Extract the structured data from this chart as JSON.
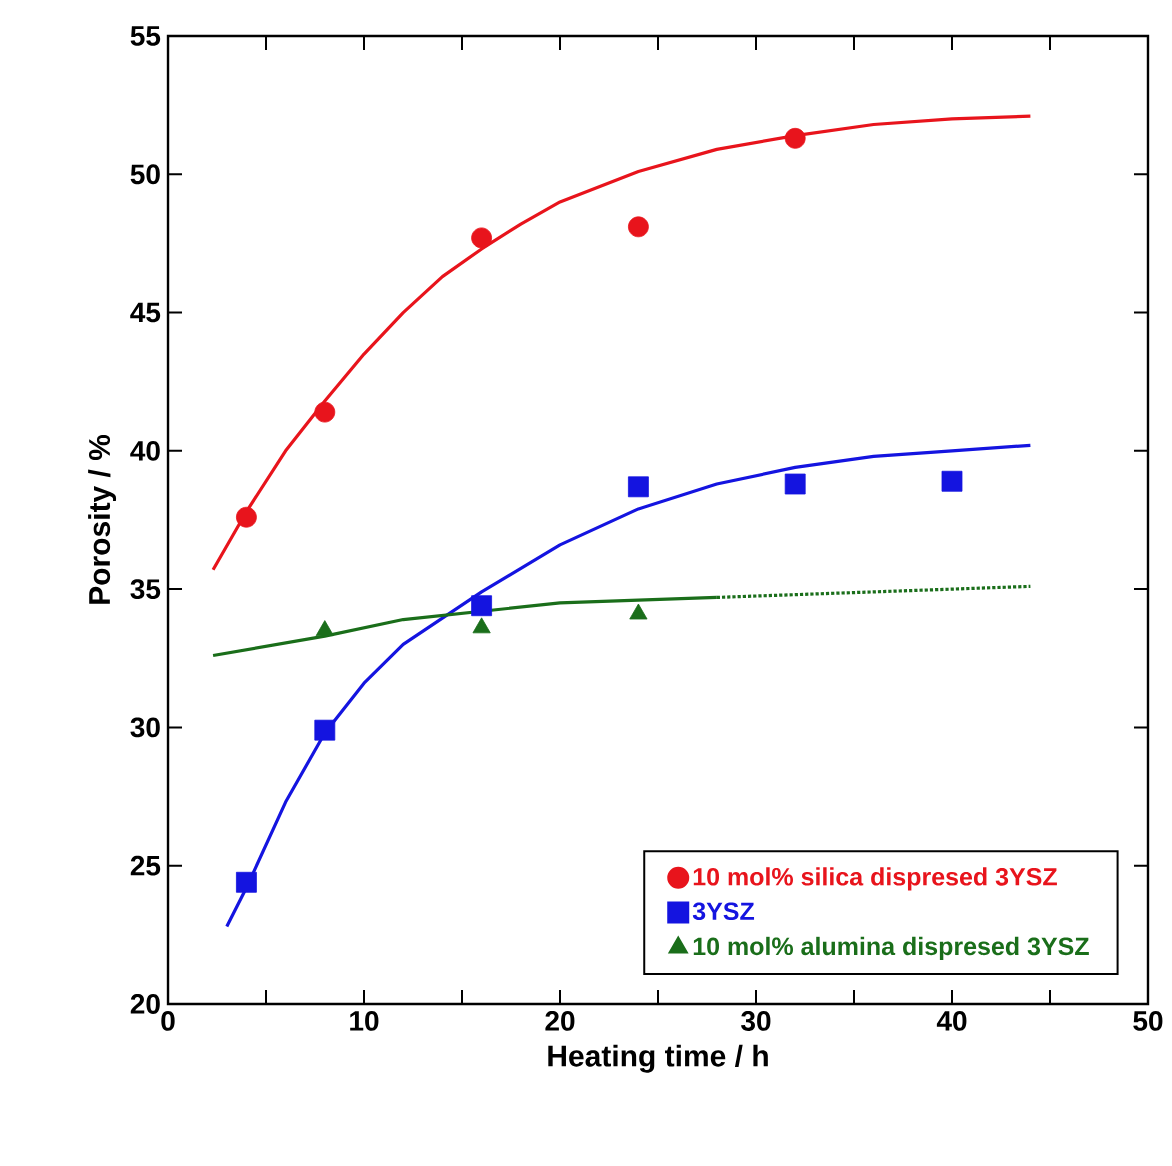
{
  "chart_data": {
    "type": "scatter",
    "xlabel": "Heating time / h",
    "ylabel": "Porosity / %",
    "xlim": [
      0,
      50
    ],
    "ylim": [
      20,
      55
    ],
    "xticks": [
      0,
      10,
      20,
      30,
      40,
      50
    ],
    "yticks": [
      20,
      25,
      30,
      35,
      40,
      45,
      50,
      55
    ],
    "legend": "bottom right",
    "grid": false,
    "series": [
      {
        "name": "10 mol% silica dispresed 3YSZ",
        "color": "#e8141c",
        "marker": "circle",
        "x": [
          4,
          8,
          16,
          24,
          32
        ],
        "values": [
          37.6,
          41.4,
          47.7,
          48.1,
          51.3
        ]
      },
      {
        "name": "3YSZ",
        "color": "#1414e0",
        "marker": "square",
        "x": [
          4,
          8,
          16,
          24,
          32,
          40
        ],
        "values": [
          24.4,
          29.9,
          34.4,
          38.7,
          38.8,
          38.9
        ]
      },
      {
        "name": "10 mol% alumina dispresed 3YSZ",
        "color": "#1a6e1a",
        "marker": "triangle",
        "x": [
          8,
          16,
          24
        ],
        "values": [
          33.5,
          33.6,
          34.1
        ]
      },
      {
        "type": "line",
        "color": "#e8141c",
        "marker": "none",
        "line_style": "solid",
        "x": [
          2.3,
          4,
          6,
          8,
          10,
          12,
          14,
          16,
          18,
          20,
          24,
          28,
          32,
          36,
          40,
          44
        ],
        "values": [
          35.7,
          37.8,
          40.0,
          41.8,
          43.5,
          45.0,
          46.3,
          47.3,
          48.2,
          49.0,
          50.1,
          50.9,
          51.4,
          51.8,
          52.0,
          52.1
        ]
      },
      {
        "type": "line",
        "color": "#1414e0",
        "marker": "none",
        "line_style": "solid",
        "x": [
          3,
          4,
          6,
          8,
          10,
          12,
          16,
          20,
          24,
          28,
          32,
          36,
          40,
          44
        ],
        "values": [
          22.8,
          24.2,
          27.3,
          29.8,
          31.6,
          33.0,
          34.9,
          36.6,
          37.9,
          38.8,
          39.4,
          39.8,
          40.0,
          40.2
        ]
      },
      {
        "type": "line",
        "color": "#1a6e1a",
        "marker": "none",
        "line_style": "solid",
        "x": [
          2.3,
          8,
          12,
          20,
          24,
          28
        ],
        "values": [
          32.6,
          33.3,
          33.9,
          34.5,
          34.6,
          34.7
        ]
      },
      {
        "type": "line",
        "color": "#1a6e1a",
        "marker": "none",
        "line_style": "dotted",
        "x": [
          28,
          32,
          36,
          40,
          44
        ],
        "values": [
          34.7,
          34.8,
          34.9,
          35.0,
          35.1
        ]
      }
    ]
  }
}
